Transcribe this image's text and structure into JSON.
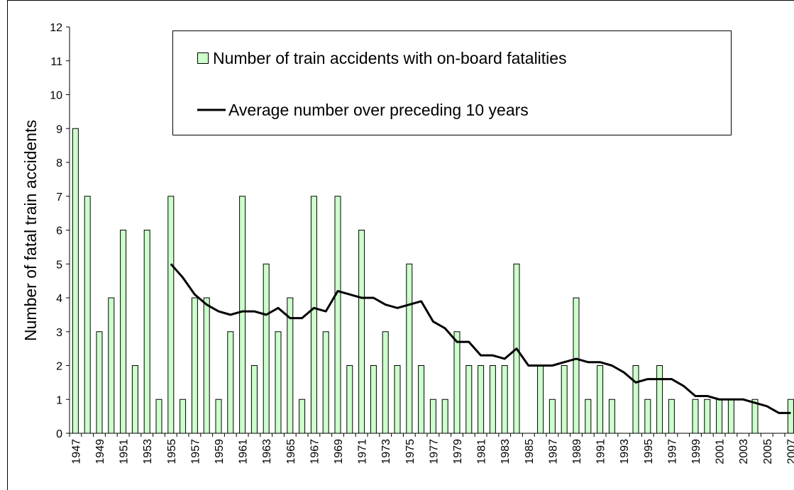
{
  "chart_data": {
    "type": "bar",
    "y_label": "Number of fatal train accidents",
    "categories": [
      "1947",
      null,
      "1949",
      null,
      "1951",
      null,
      "1953",
      null,
      "1955",
      null,
      "1957",
      null,
      "1959",
      null,
      "1961",
      null,
      "1963",
      null,
      "1965",
      null,
      "1967",
      null,
      "1969",
      null,
      "1971",
      null,
      "1973",
      null,
      "1975",
      null,
      "1977",
      null,
      "1979",
      null,
      "1981",
      null,
      "1983",
      null,
      "1985",
      null,
      "1987",
      null,
      "1989",
      null,
      "1991",
      null,
      "1993",
      null,
      "1995",
      null,
      "1997",
      null,
      "1999",
      null,
      "2001",
      null,
      "2003",
      null,
      "2005",
      null,
      "2007"
    ],
    "series": [
      {
        "name": "Number of train accidents with on-board fatalities",
        "type": "bar",
        "color": "#ccffcc",
        "values": [
          9,
          7,
          3,
          4,
          6,
          2,
          6,
          1,
          7,
          1,
          4,
          4,
          1,
          3,
          7,
          2,
          5,
          3,
          4,
          1,
          7,
          3,
          7,
          2,
          6,
          2,
          3,
          2,
          5,
          2,
          1,
          1,
          3,
          2,
          2,
          2,
          2,
          5,
          0,
          2,
          1,
          2,
          4,
          1,
          2,
          1,
          0,
          2,
          1,
          2,
          1,
          0,
          1,
          1,
          1,
          1,
          0,
          1,
          0,
          0,
          1
        ]
      },
      {
        "name": "Average number over preceding 10 years",
        "type": "line",
        "color": "#000000",
        "values": [
          null,
          null,
          null,
          null,
          null,
          null,
          null,
          null,
          5.0,
          4.6,
          4.1,
          3.8,
          3.6,
          3.5,
          3.6,
          3.6,
          3.5,
          3.7,
          3.4,
          3.4,
          3.7,
          3.6,
          4.2,
          4.1,
          4.0,
          4.0,
          3.8,
          3.7,
          3.8,
          3.9,
          3.3,
          3.1,
          2.7,
          2.7,
          2.3,
          2.3,
          2.2,
          2.5,
          2.0,
          2.0,
          2.0,
          2.1,
          2.2,
          2.1,
          2.1,
          2.0,
          1.8,
          1.5,
          1.6,
          1.6,
          1.6,
          1.4,
          1.1,
          1.1,
          1.0,
          1.0,
          1.0,
          0.9,
          0.8,
          0.6,
          0.6
        ]
      }
    ],
    "ylim": [
      0,
      12
    ],
    "yticks": [
      0,
      1,
      2,
      3,
      4,
      5,
      6,
      7,
      8,
      9,
      10,
      11,
      12
    ],
    "grid": false
  }
}
